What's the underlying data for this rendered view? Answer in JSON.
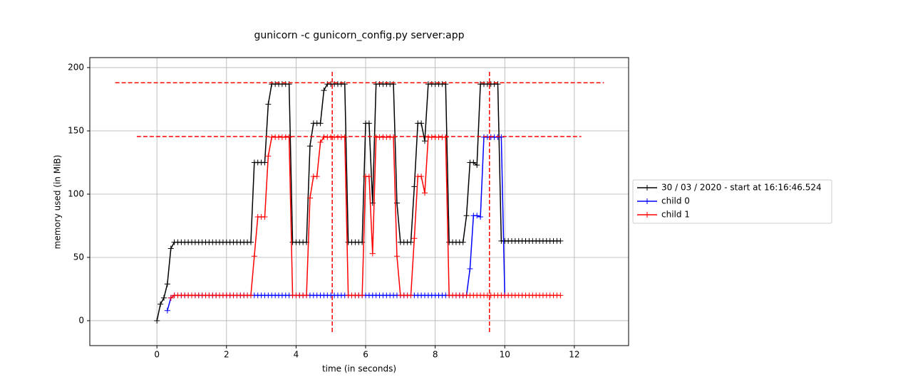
{
  "chart_data": {
    "type": "line",
    "title": "gunicorn -c gunicorn_config.py server:app",
    "x_label": "time (in seconds)",
    "y_label": "memory used (in MiB)",
    "xlim": [
      -1.93,
      13.56
    ],
    "ylim": [
      -19.7,
      207.9
    ],
    "xticks": [
      0,
      2,
      4,
      6,
      8,
      10,
      12
    ],
    "yticks": [
      0,
      50,
      100,
      150,
      200
    ],
    "grid": true,
    "legend": "right",
    "series": [
      {
        "name": "30 / 03 / 2020 - start at 16:16:46.524",
        "color": "#000000",
        "x": [
          0,
          0.1,
          0.2,
          0.3,
          0.4,
          0.5,
          0.6,
          0.7,
          0.8,
          0.9,
          1,
          1.1,
          1.2,
          1.3,
          1.4,
          1.5,
          1.6,
          1.7,
          1.8,
          1.9,
          2,
          2.1,
          2.2,
          2.3,
          2.4,
          2.5,
          2.6,
          2.7,
          2.8,
          2.9,
          3,
          3.1,
          3.2,
          3.3,
          3.4,
          3.5,
          3.6,
          3.7,
          3.8,
          3.9,
          4,
          4.1,
          4.2,
          4.3,
          4.4,
          4.5,
          4.6,
          4.7,
          4.8,
          4.9,
          5,
          5.1,
          5.2,
          5.3,
          5.4,
          5.5,
          5.6,
          5.7,
          5.8,
          5.9,
          6,
          6.1,
          6.2,
          6.3,
          6.4,
          6.5,
          6.6,
          6.7,
          6.8,
          6.9,
          7,
          7.1,
          7.2,
          7.3,
          7.4,
          7.5,
          7.6,
          7.7,
          7.8,
          7.9,
          8,
          8.1,
          8.2,
          8.3,
          8.4,
          8.5,
          8.6,
          8.7,
          8.8,
          8.9,
          9,
          9.1,
          9.2,
          9.3,
          9.4,
          9.5,
          9.6,
          9.7,
          9.8,
          9.9,
          10,
          10.1,
          10.2,
          10.3,
          10.4,
          10.5,
          10.6,
          10.7,
          10.8,
          10.9,
          11,
          11.1,
          11.2,
          11.3,
          11.4,
          11.5,
          11.6
        ],
        "values": [
          0,
          13,
          18,
          29,
          57,
          62,
          62,
          62,
          62,
          62,
          62,
          62,
          62,
          62,
          62,
          62,
          62,
          62,
          62,
          62,
          62,
          62,
          62,
          62,
          62,
          62,
          62,
          62,
          125,
          125,
          125,
          125,
          171,
          187,
          187,
          187,
          187,
          187,
          187,
          62,
          62,
          62,
          62,
          62,
          138,
          156,
          156,
          156,
          182,
          187,
          187,
          187,
          187,
          187,
          187,
          62,
          62,
          62,
          62,
          62,
          156,
          156,
          93,
          187,
          187,
          187,
          187,
          187,
          187,
          93,
          62,
          62,
          62,
          62,
          106,
          156,
          156,
          142,
          187,
          187,
          187,
          187,
          187,
          187,
          62,
          62,
          62,
          62,
          62,
          83,
          125,
          125,
          123,
          187,
          187,
          187,
          187,
          187,
          187,
          63,
          63,
          63,
          63,
          63,
          63,
          63,
          63,
          63,
          63,
          63,
          63,
          63,
          63,
          63,
          63,
          63,
          63
        ]
      },
      {
        "name": "child 0",
        "color": "#0000ff",
        "x": [
          0.3,
          0.4,
          0.5,
          0.6,
          0.7,
          0.8,
          0.9,
          1,
          1.1,
          1.2,
          1.3,
          1.4,
          1.5,
          1.6,
          1.7,
          1.8,
          1.9,
          2,
          2.1,
          2.2,
          2.3,
          2.4,
          2.5,
          2.6,
          2.7,
          2.8,
          2.9,
          3,
          3.1,
          3.2,
          3.3,
          3.4,
          3.5,
          3.6,
          3.7,
          3.8,
          3.9,
          4,
          4.1,
          4.2,
          4.3,
          4.4,
          4.5,
          4.6,
          4.7,
          4.8,
          4.9,
          5,
          5.1,
          5.2,
          5.3,
          5.4,
          5.5,
          5.6,
          5.7,
          5.8,
          5.9,
          6,
          6.1,
          6.2,
          6.3,
          6.4,
          6.5,
          6.6,
          6.7,
          6.8,
          6.9,
          7,
          7.1,
          7.2,
          7.3,
          7.4,
          7.5,
          7.6,
          7.7,
          7.8,
          7.9,
          8,
          8.1,
          8.2,
          8.3,
          8.4,
          8.5,
          8.6,
          8.7,
          8.8,
          8.9,
          9,
          9.1,
          9.2,
          9.3,
          9.4,
          9.5,
          9.6,
          9.7,
          9.8,
          9.9,
          10
        ],
        "values": [
          8,
          18,
          20,
          20,
          20,
          20,
          20,
          20,
          20,
          20,
          20,
          20,
          20,
          20,
          20,
          20,
          20,
          20,
          20,
          20,
          20,
          20,
          20,
          20,
          20,
          20,
          20,
          20,
          20,
          20,
          20,
          20,
          20,
          20,
          20,
          20,
          20,
          20,
          20,
          20,
          20,
          20,
          20,
          20,
          20,
          20,
          20,
          20,
          20,
          20,
          20,
          20,
          20,
          20,
          20,
          20,
          20,
          20,
          20,
          20,
          20,
          20,
          20,
          20,
          20,
          20,
          20,
          20,
          20,
          20,
          20,
          20,
          20,
          20,
          20,
          20,
          20,
          20,
          20,
          20,
          20,
          20,
          20,
          20,
          20,
          20,
          20,
          41,
          83,
          83,
          82,
          145,
          145,
          145,
          145,
          145,
          145,
          20
        ]
      },
      {
        "name": "child 1",
        "color": "#ff0000",
        "x": [
          0.4,
          0.5,
          0.6,
          0.7,
          0.8,
          0.9,
          1,
          1.1,
          1.2,
          1.3,
          1.4,
          1.5,
          1.6,
          1.7,
          1.8,
          1.9,
          2,
          2.1,
          2.2,
          2.3,
          2.4,
          2.5,
          2.6,
          2.7,
          2.8,
          2.9,
          3,
          3.1,
          3.2,
          3.3,
          3.4,
          3.5,
          3.6,
          3.7,
          3.8,
          3.9,
          4,
          4.1,
          4.2,
          4.3,
          4.4,
          4.5,
          4.6,
          4.7,
          4.8,
          4.9,
          5,
          5.1,
          5.2,
          5.3,
          5.4,
          5.5,
          5.6,
          5.7,
          5.8,
          5.9,
          6,
          6.1,
          6.2,
          6.3,
          6.4,
          6.5,
          6.6,
          6.7,
          6.8,
          6.9,
          7,
          7.1,
          7.2,
          7.3,
          7.4,
          7.5,
          7.6,
          7.7,
          7.8,
          7.9,
          8,
          8.1,
          8.2,
          8.3,
          8.4,
          8.5,
          8.6,
          8.7,
          8.8,
          8.9,
          9,
          9.1,
          9.2,
          9.3,
          9.4,
          9.5,
          9.6,
          9.7,
          9.8,
          9.9,
          10,
          10.1,
          10.2,
          10.3,
          10.4,
          10.5,
          10.6,
          10.7,
          10.8,
          10.9,
          11,
          11.1,
          11.2,
          11.3,
          11.4,
          11.5,
          11.6
        ],
        "values": [
          18,
          20,
          20,
          20,
          20,
          20,
          20,
          20,
          20,
          20,
          20,
          20,
          20,
          20,
          20,
          20,
          20,
          20,
          20,
          20,
          20,
          20,
          20,
          20,
          51,
          82,
          82,
          82,
          130,
          145,
          145,
          145,
          145,
          145,
          145,
          20,
          20,
          20,
          20,
          20,
          97,
          114,
          114,
          141,
          145,
          145,
          145,
          145,
          145,
          145,
          145,
          20,
          20,
          20,
          20,
          20,
          114,
          114,
          53,
          145,
          145,
          145,
          145,
          145,
          145,
          51,
          20,
          20,
          20,
          20,
          65,
          114,
          114,
          101,
          145,
          145,
          145,
          145,
          145,
          145,
          20,
          20,
          20,
          20,
          20,
          20,
          20,
          20,
          20,
          20,
          20,
          20,
          20,
          20,
          20,
          20,
          20,
          20,
          20,
          20,
          20,
          20,
          20,
          20,
          20,
          20,
          20,
          20,
          20,
          20,
          20,
          20,
          20
        ]
      }
    ],
    "reference_color": "#ff0000",
    "hlines": [
      {
        "y": 188,
        "xmin": -1.2,
        "xmax": 12.85
      },
      {
        "y": 145.5,
        "xmin": -0.58,
        "xmax": 12.2
      }
    ],
    "vlines": [
      {
        "x": 5.04,
        "ymin": -9,
        "ymax": 197
      },
      {
        "x": 9.56,
        "ymin": -9,
        "ymax": 197
      }
    ]
  }
}
